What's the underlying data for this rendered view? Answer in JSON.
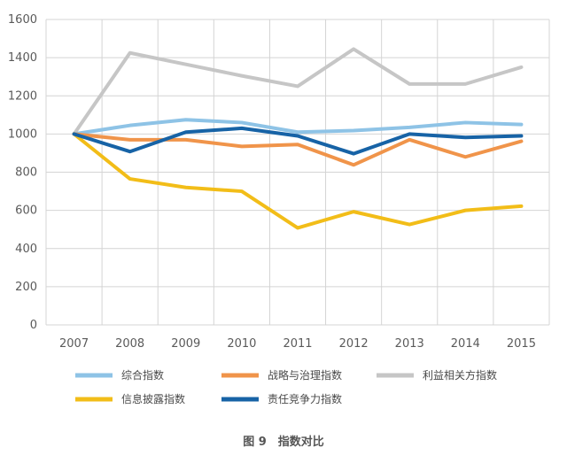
{
  "chart_data": {
    "type": "line",
    "x": [
      "2007",
      "2008",
      "2009",
      "2010",
      "2011",
      "2012",
      "2013",
      "2014",
      "2015"
    ],
    "ylim": [
      0,
      1600
    ],
    "yticks": [
      0,
      200,
      400,
      600,
      800,
      1000,
      1200,
      1400,
      1600
    ],
    "grid": true,
    "legend_position": "bottom",
    "caption": "图 9　指数对比",
    "series": [
      {
        "name": "综合指数",
        "color": "#8ec3e6",
        "values": [
          1000,
          1045,
          1075,
          1060,
          1010,
          1018,
          1035,
          1060,
          1050
        ]
      },
      {
        "name": "战略与治理指数",
        "color": "#f0944a",
        "values": [
          1000,
          970,
          970,
          935,
          945,
          838,
          970,
          880,
          962
        ]
      },
      {
        "name": "利益相关方指数",
        "color": "#c6c6c6",
        "values": [
          1000,
          1425,
          1365,
          1305,
          1250,
          1445,
          1262,
          1262,
          1350
        ]
      },
      {
        "name": "信息披露指数",
        "color": "#f2bd18",
        "values": [
          1000,
          765,
          720,
          700,
          508,
          593,
          526,
          600,
          622
        ]
      },
      {
        "name": "责任竞争力指数",
        "color": "#1763a6",
        "values": [
          1000,
          908,
          1010,
          1030,
          990,
          897,
          1000,
          982,
          990
        ]
      }
    ]
  }
}
